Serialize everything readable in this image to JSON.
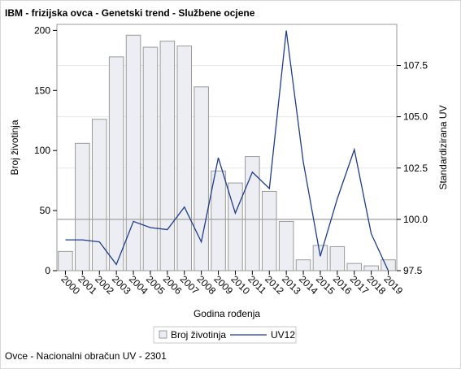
{
  "title": "IBM - frizijska ovca - Genetski trend - Službene ocjene",
  "footnote": "Ovce - Nacionalni obračun UV - 2301",
  "colors": {
    "bar_fill": "#eceef4",
    "bar_stroke": "#9a9a9a",
    "line": "#1f3d8c",
    "grid": "#e8e8e8",
    "reference": "#a0a0a0"
  },
  "chart_data": {
    "type": "bar",
    "categories": [
      "2000",
      "2001",
      "2002",
      "2003",
      "2004",
      "2005",
      "2006",
      "2007",
      "2008",
      "2009",
      "2010",
      "2011",
      "2012",
      "2013",
      "2014",
      "2015",
      "2016",
      "2017",
      "2018",
      "2019"
    ],
    "series": [
      {
        "name": "Broj životinja",
        "type": "bar",
        "axis": "left",
        "values": [
          16,
          106,
          126,
          178,
          196,
          186,
          191,
          187,
          153,
          83,
          73,
          95,
          66,
          41,
          9,
          21,
          20,
          6,
          4,
          9
        ]
      },
      {
        "name": "UV12",
        "type": "line",
        "axis": "right",
        "values": [
          99.0,
          99.0,
          98.9,
          97.8,
          99.9,
          99.6,
          99.5,
          100.6,
          98.9,
          103.0,
          100.3,
          102.3,
          101.5,
          109.2,
          102.8,
          98.2,
          101.0,
          103.4,
          99.3,
          97.5
        ]
      }
    ],
    "xlabel": "Godina rođenja",
    "ylabel": "Broj životinja",
    "y2label": "Standardizirana UV",
    "ylim": [
      0,
      205
    ],
    "y2lim": [
      97.5,
      109.5
    ],
    "yticks": [
      0,
      50,
      100,
      150,
      200
    ],
    "y2ticks": [
      97.5,
      100.0,
      102.5,
      105.0,
      107.5
    ],
    "y2tick_labels": [
      "97.5",
      "100.0",
      "102.5",
      "105.0",
      "107.5"
    ],
    "reference_line": 100.0,
    "grid": true,
    "legend": {
      "position": "bottom",
      "entries": [
        "Broj životinja",
        "UV12"
      ]
    }
  }
}
